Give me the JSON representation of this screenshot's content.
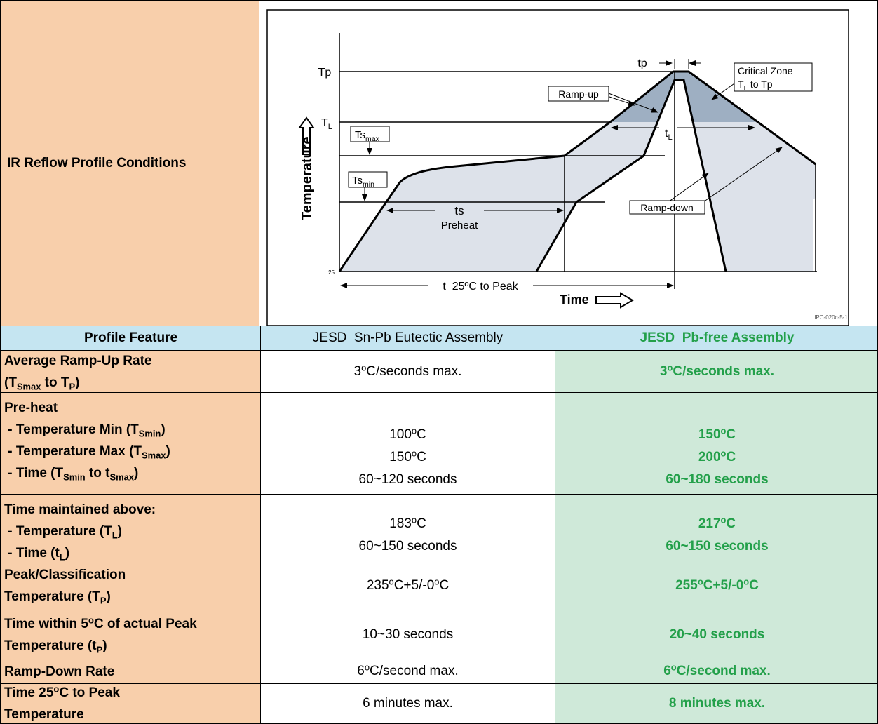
{
  "top": {
    "left_label": "IR Reflow Profile Conditions"
  },
  "diagram": {
    "tp_axis": "Tp",
    "tl_axis": [
      "T",
      {
        "sub": "L"
      }
    ],
    "y_label": "Temperature",
    "ts_max": [
      "Ts",
      {
        "sub": "max"
      }
    ],
    "ts_min": [
      "Ts",
      {
        "sub": "min"
      }
    ],
    "ts": "ts",
    "preheat": "Preheat",
    "t_total": "t  25ºC to Peak",
    "x_label": "Time",
    "tp": "tp",
    "ramp_up": "Ramp-up",
    "critical_zone": "Critical Zone",
    "critical_range": [
      "T",
      {
        "sub": "L"
      },
      " to Tp"
    ],
    "tl": [
      "t",
      {
        "sub": "L"
      }
    ],
    "ramp_down": "Ramp-down",
    "origin": "25",
    "ref": "IPC-020c-5-1"
  },
  "table": {
    "header": [
      "Profile Feature",
      "JESD  Sn-Pb Eutectic Assembly",
      "JESD  Pb-free Assembly"
    ],
    "rows": [
      {
        "feature": [
          [
            "Average Ramp-Up Rate"
          ],
          [
            "(T",
            {
              "sub": "Smax"
            },
            " to T",
            {
              "sub": "P"
            },
            ")"
          ]
        ],
        "snpb": [
          [
            "3",
            {
              "sup": "o"
            },
            "C/seconds max."
          ]
        ],
        "pbfree": [
          [
            "3",
            {
              "sup": "o"
            },
            "C/seconds max."
          ]
        ]
      },
      {
        "feature": [
          [
            "Pre-heat"
          ],
          [
            " - Temperature Min (T",
            {
              "sub": "Smin"
            },
            ")"
          ],
          [
            " - Temperature Max (T",
            {
              "sub": "Smax"
            },
            ")"
          ],
          [
            " - Time (T",
            {
              "sub": "Smin"
            },
            " to t",
            {
              "sub": "Smax"
            },
            ")"
          ]
        ],
        "snpb": [
          [
            "100",
            {
              "sup": "o"
            },
            "C"
          ],
          [
            "150",
            {
              "sup": "o"
            },
            "C"
          ],
          [
            "60~120 seconds"
          ]
        ],
        "pbfree": [
          [
            "150",
            {
              "sup": "o"
            },
            "C"
          ],
          [
            "200",
            {
              "sup": "o"
            },
            "C"
          ],
          [
            "60~180 seconds"
          ]
        ]
      },
      {
        "feature": [
          [
            "Time maintained above:"
          ],
          [
            " - Temperature (T",
            {
              "sub": "L"
            },
            ")"
          ],
          [
            " - Time (t",
            {
              "sub": "L"
            },
            ")"
          ]
        ],
        "snpb": [
          [
            "183",
            {
              "sup": "o"
            },
            "C"
          ],
          [
            "60~150 seconds"
          ]
        ],
        "pbfree": [
          [
            "217",
            {
              "sup": "o"
            },
            "C"
          ],
          [
            "60~150 seconds"
          ]
        ]
      },
      {
        "feature": [
          [
            "Peak/Classification"
          ],
          [
            "Temperature (T",
            {
              "sub": "P"
            },
            ")"
          ]
        ],
        "snpb": [
          [
            "235",
            {
              "sup": "o"
            },
            "C+5/-0",
            {
              "sup": "o"
            },
            "C"
          ]
        ],
        "pbfree": [
          [
            "255",
            {
              "sup": "o"
            },
            "C+5/-0",
            {
              "sup": "o"
            },
            "C"
          ]
        ]
      },
      {
        "feature": [
          [
            "Time within 5",
            {
              "sup": "o"
            },
            "C of actual Peak"
          ],
          [
            "Temperature (t",
            {
              "sub": "P"
            },
            ")"
          ]
        ],
        "snpb": [
          [
            "10~30 seconds"
          ]
        ],
        "pbfree": [
          [
            "20~40 seconds"
          ]
        ]
      },
      {
        "feature": [
          [
            "Ramp-Down Rate"
          ]
        ],
        "snpb": [
          [
            "6",
            {
              "sup": "o"
            },
            "C/second max."
          ]
        ],
        "pbfree": [
          [
            "6",
            {
              "sup": "o"
            },
            "C/second max."
          ]
        ]
      },
      {
        "feature": [
          [
            "Time 25",
            {
              "sup": "o"
            },
            "C to Peak"
          ],
          [
            "Temperature"
          ]
        ],
        "snpb": [
          [
            "6 minutes max."
          ]
        ],
        "pbfree": [
          [
            "8 minutes max."
          ]
        ]
      }
    ]
  }
}
